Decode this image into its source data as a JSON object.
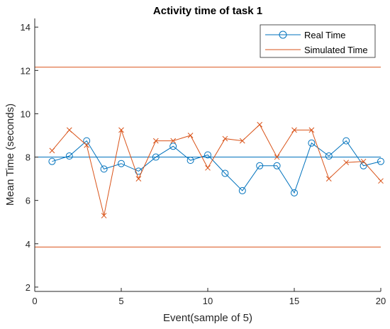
{
  "chart_data": {
    "type": "line",
    "title": "Activity time of task 1",
    "xlabel": "Event(sample of 5)",
    "ylabel": "Mean Time (seconds)",
    "xlim": [
      0,
      20
    ],
    "ylim": [
      1.8,
      14.4
    ],
    "xticks": [
      0,
      5,
      10,
      15,
      20
    ],
    "yticks": [
      2,
      4,
      6,
      8,
      10,
      12,
      14
    ],
    "grid": false,
    "legend_position": "top-right",
    "x": [
      1,
      2,
      3,
      4,
      5,
      6,
      7,
      8,
      9,
      10,
      11,
      12,
      13,
      14,
      15,
      16,
      17,
      18,
      19,
      20
    ],
    "series": [
      {
        "name": "Real Time",
        "color": "#0072BD",
        "marker": "circle",
        "values": [
          7.8,
          8.05,
          8.75,
          7.45,
          7.7,
          7.35,
          8.0,
          8.5,
          7.85,
          8.1,
          7.25,
          6.45,
          7.6,
          7.6,
          6.35,
          8.65,
          8.05,
          8.75,
          7.6,
          7.8
        ]
      },
      {
        "name": "Simulated Time",
        "color": "#D95319",
        "marker": "x",
        "values": [
          8.3,
          9.25,
          8.55,
          5.3,
          9.25,
          7.0,
          8.75,
          8.75,
          9.0,
          7.5,
          8.85,
          8.75,
          9.5,
          8.0,
          9.25,
          9.25,
          7.0,
          7.75,
          7.8,
          6.9
        ]
      }
    ],
    "reference_lines": [
      {
        "y": 8.0,
        "color": "#0072BD"
      },
      {
        "y": 12.15,
        "color": "#D95319"
      },
      {
        "y": 3.85,
        "color": "#D95319"
      }
    ]
  }
}
